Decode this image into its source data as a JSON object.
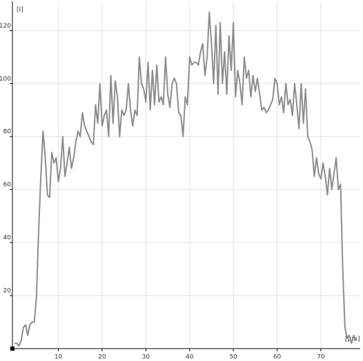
{
  "chart_data": {
    "type": "line",
    "x_label": "[µm]",
    "y_label": "[I]",
    "x": [
      0,
      0.5,
      1,
      1.5,
      2,
      2.5,
      3,
      3.5,
      4,
      4.5,
      5,
      5.5,
      6,
      6.5,
      7,
      7.5,
      8,
      8.5,
      9,
      9.5,
      10,
      10.5,
      11,
      11.5,
      12,
      12.5,
      13,
      13.5,
      14,
      14.5,
      15,
      15.5,
      16,
      16.5,
      17,
      17.5,
      18,
      18.5,
      19,
      19.5,
      20,
      20.5,
      21,
      21.5,
      22,
      22.5,
      23,
      23.5,
      24,
      24.5,
      25,
      25.5,
      26,
      26.5,
      27,
      27.5,
      28,
      28.5,
      29,
      29.5,
      30,
      30.5,
      31,
      31.5,
      32,
      32.5,
      33,
      33.5,
      34,
      34.5,
      35,
      35.5,
      36,
      36.5,
      37,
      37.5,
      38,
      38.5,
      39,
      39.5,
      40,
      40.5,
      41,
      41.5,
      42,
      42.5,
      43,
      43.5,
      44,
      44.5,
      45,
      45.5,
      46,
      46.5,
      47,
      47.5,
      48,
      48.5,
      49,
      49.5,
      50,
      50.5,
      51,
      51.5,
      52,
      52.5,
      53,
      53.5,
      54,
      54.5,
      55,
      55.5,
      56,
      56.5,
      57,
      57.5,
      58,
      58.5,
      59,
      59.5,
      60,
      60.5,
      61,
      61.5,
      62,
      62.5,
      63,
      63.5,
      64,
      64.5,
      65,
      65.5,
      66,
      66.5,
      67,
      67.5,
      68,
      68.5,
      69,
      69.5,
      70,
      70.5,
      71,
      71.5,
      72,
      72.5,
      73,
      73.5,
      74,
      74.5,
      75,
      75.5,
      76,
      76.5,
      77,
      77.5,
      78
    ],
    "series": [
      {
        "color": "#8c8c8c",
        "values": [
          2,
          2,
          1,
          3,
          8,
          9,
          5,
          9,
          10,
          10,
          20,
          45,
          65,
          82,
          72,
          58,
          57,
          74,
          70,
          72,
          63,
          68,
          80,
          65,
          70,
          76,
          68,
          72,
          78,
          82,
          80,
          89,
          84,
          82,
          80,
          78,
          77,
          92,
          85,
          100,
          84,
          88,
          90,
          80,
          103,
          85,
          101,
          95,
          80,
          90,
          88,
          90,
          100,
          90,
          84,
          90,
          88,
          110,
          100,
          98,
          93,
          108,
          90,
          105,
          92,
          107,
          93,
          95,
          92,
          110,
          96,
          91,
          100,
          102,
          100,
          89,
          88,
          80,
          95,
          92,
          110,
          107,
          108,
          108,
          107,
          112,
          115,
          103,
          110,
          127,
          115,
          100,
          122,
          96,
          123,
          100,
          112,
          96,
          118,
          105,
          123,
          95,
          105,
          100,
          92,
          110,
          102,
          105,
          95,
          103,
          97,
          102,
          96,
          90,
          91,
          89,
          90,
          92,
          94,
          102,
          100,
          92,
          95,
          89,
          100,
          92,
          94,
          88,
          100,
          92,
          83,
          100,
          85,
          98,
          80,
          78,
          75,
          65,
          72,
          66,
          64,
          70,
          65,
          58,
          68,
          60,
          66,
          72,
          60,
          62,
          30,
          8,
          4,
          5,
          2,
          5,
          3
        ]
      }
    ],
    "xlim": [
      -0.5,
      79
    ],
    "ylim": [
      0,
      131
    ],
    "xticks": [
      10,
      20,
      30,
      40,
      50,
      60,
      70
    ],
    "yticks": [
      20,
      40,
      60,
      80,
      100,
      120
    ],
    "grid": true
  }
}
